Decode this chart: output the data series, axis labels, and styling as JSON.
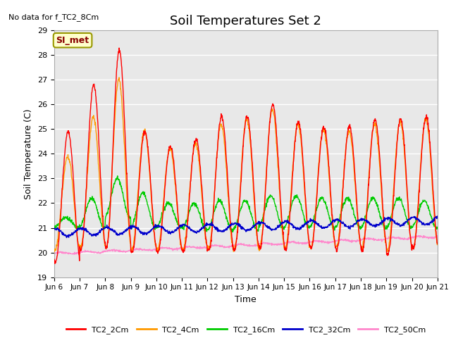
{
  "title": "Soil Temperatures Set 2",
  "top_left_note": "No data for f_TC2_8Cm",
  "ylabel": "Soil Temperature (C)",
  "xlabel": "Time",
  "ylim": [
    19.0,
    29.0
  ],
  "yticks": [
    19.0,
    20.0,
    21.0,
    22.0,
    23.0,
    24.0,
    25.0,
    26.0,
    27.0,
    28.0,
    29.0
  ],
  "xtick_labels": [
    "Jun 6",
    "Jun 7",
    "Jun 8",
    "Jun 9",
    "Jun 10",
    "Jun 11",
    "Jun 12",
    "Jun 13",
    "Jun 14",
    "Jun 15",
    "Jun 16",
    "Jun 17",
    "Jun 18",
    "Jun 19",
    "Jun 20",
    "Jun 21"
  ],
  "legend_labels": [
    "TC2_2Cm",
    "TC2_4Cm",
    "TC2_16Cm",
    "TC2_32Cm",
    "TC2_50Cm"
  ],
  "line_colors": [
    "#ff0000",
    "#ff9900",
    "#00cc00",
    "#0000cc",
    "#ff88cc"
  ],
  "legend_box_color": "#ffffcc",
  "legend_box_text": "SI_met",
  "legend_box_text_color": "#880000",
  "background_color": "#e8e8e8",
  "grid_color": "#ffffff",
  "title_fontsize": 13,
  "axis_fontsize": 9,
  "figsize": [
    6.4,
    4.8
  ],
  "dpi": 100
}
